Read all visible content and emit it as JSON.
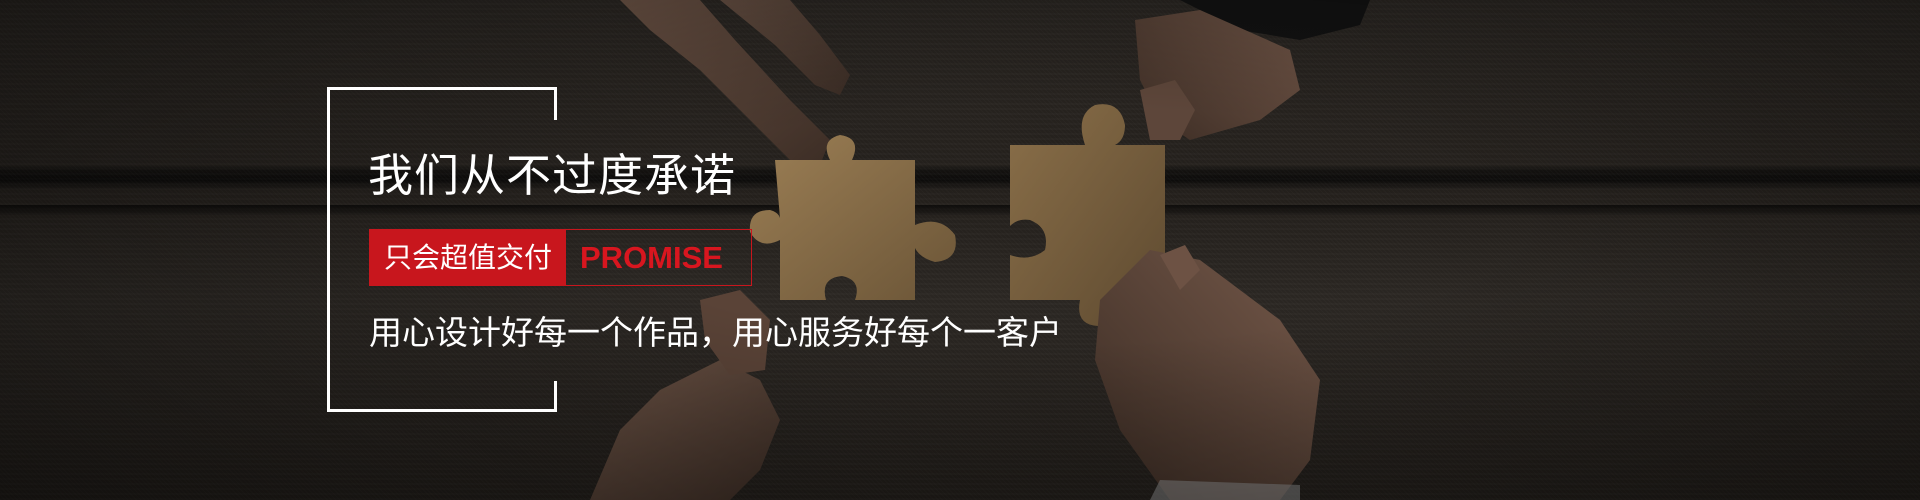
{
  "banner": {
    "headline": "我们从不过度承诺",
    "tag_cn": "只会超值交付",
    "tag_en": "PROMISE",
    "subline": "用心设计好每一个作品，用心服务好每个一客户"
  },
  "colors": {
    "accent_red": "#c8161d",
    "text_white": "#ffffff",
    "background": "#24201c"
  }
}
